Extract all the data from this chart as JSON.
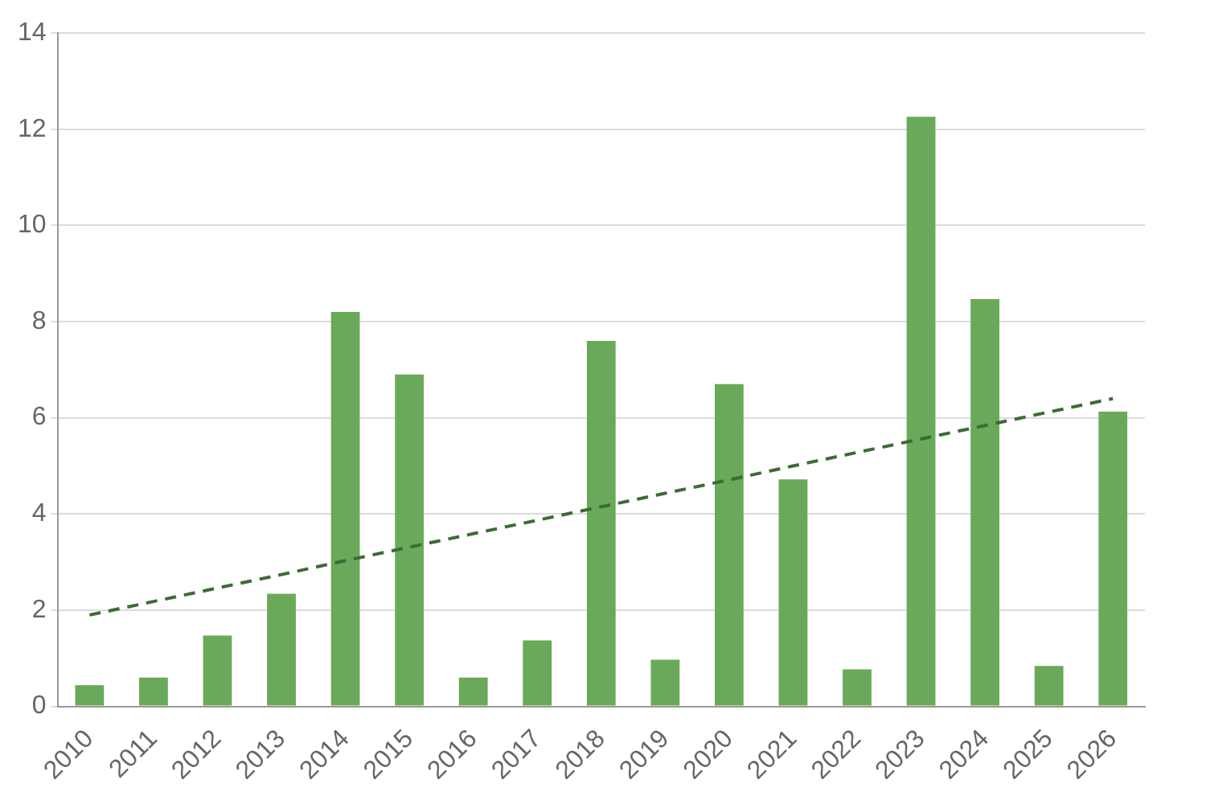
{
  "chart_data": {
    "type": "bar",
    "categories": [
      "2010",
      "2011",
      "2012",
      "2013",
      "2014",
      "2015",
      "2016",
      "2017",
      "2018",
      "2019",
      "2020",
      "2021",
      "2022",
      "2023",
      "2024",
      "2025",
      "2026"
    ],
    "series": [
      {
        "color": "#6aa959",
        "values": [
          0.44,
          0.6,
          1.47,
          2.34,
          8.2,
          6.9,
          0.6,
          1.37,
          7.6,
          0.97,
          6.7,
          4.72,
          0.77,
          12.26,
          8.47,
          0.84,
          6.13
        ]
      },
      {
        "type": "line",
        "color": "#3d6b35",
        "line_style": "dashed",
        "marker": "none",
        "values": [
          1.9,
          2.18,
          2.46,
          2.74,
          3.03,
          3.31,
          3.59,
          3.87,
          4.15,
          4.43,
          4.71,
          5.0,
          5.28,
          5.56,
          5.84,
          6.12,
          6.4
        ]
      }
    ],
    "ylim": [
      0,
      14
    ],
    "yticks": [
      0,
      2,
      4,
      6,
      8,
      10,
      12,
      14
    ],
    "grid": "y",
    "legend": false
  }
}
